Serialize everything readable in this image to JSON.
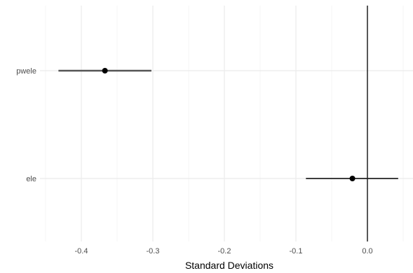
{
  "chart_data": {
    "type": "scatter",
    "subtype": "coefficient-plot",
    "title": "",
    "xlabel": "Standard Deviations",
    "ylabel": "",
    "xlim": [
      -0.45,
      0.05
    ],
    "x_ticks": [
      -0.4,
      -0.3,
      -0.2,
      -0.1,
      0.0
    ],
    "x_tick_labels": [
      "-0.4",
      "-0.3",
      "-0.2",
      "-0.1",
      "0.0"
    ],
    "categories": [
      "pwele",
      "ele"
    ],
    "points": [
      {
        "label": "pwele",
        "estimate": -0.367,
        "lower": -0.432,
        "upper": -0.302
      },
      {
        "label": "ele",
        "estimate": -0.021,
        "lower": -0.086,
        "upper": 0.043
      }
    ],
    "reference_line_x": 0,
    "grid": true,
    "legend": "none",
    "colors": {
      "point": "#000000",
      "interval_pwele": "#555555",
      "interval_ele": "#222222",
      "reference_line": "#000000",
      "grid_major": "#ebebeb",
      "grid_minor": "#f5f5f5",
      "tick_text": "#4d4d4d"
    }
  }
}
